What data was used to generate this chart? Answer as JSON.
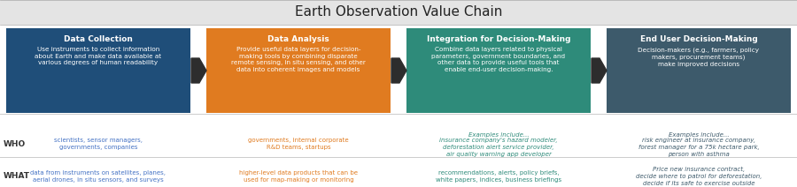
{
  "title": "Earth Observation Value Chain",
  "title_fontsize": 11,
  "background_color": "#ebebeb",
  "content_bg": "#ffffff",
  "boxes": [
    {
      "title": "Data Collection",
      "body": "Use instruments to collect information\nabout Earth and make data available at\nvarious degrees of human readability",
      "color": "#1f4e79",
      "text_color": "#ffffff"
    },
    {
      "title": "Data Analysis",
      "body": "Provide useful data layers for decision-\nmaking tools by combining disparate\nremote sensing, in situ sensing, and other\ndata into coherent images and models",
      "color": "#e07b20",
      "text_color": "#ffffff"
    },
    {
      "title": "Integration for Decision-Making",
      "body": "Combine data layers related to physical\nparameters, government boundaries, and\nother data to provide useful tools that\nenable end-user decision-making.",
      "color": "#2e8b7a",
      "text_color": "#ffffff"
    },
    {
      "title": "End User Decision-Making",
      "body": "Decision-makers (e.g., farmers, policy\nmakers, procurement teams)\nmake improved decisions",
      "color": "#3d5a6b",
      "text_color": "#ffffff"
    }
  ],
  "who_labels": [
    {
      "text": "scientists, sensor managers,\ngovernments, companies",
      "italic": false
    },
    {
      "text": "governments, internal corporate\nR&D teams, startups",
      "italic": false
    },
    {
      "text": "Examples include...",
      "extra": "insurance company's hazard modeler,\ndeforestation alert service provider,\nair quality warning app developer",
      "italic": true
    },
    {
      "text": "Examples include...",
      "extra": "risk engineer at insurance company,\nforest manager for a 75k hectare park,\nperson with asthma",
      "italic": true
    }
  ],
  "what_labels": [
    {
      "text": "data from instruments on satellites, planes,\naerial drones, in situ sensors, and surveys",
      "italic": false
    },
    {
      "text": "higher-level data products that can be\nused for map-making or monitoring",
      "italic": false
    },
    {
      "text": "recommendations, alerts, policy briefs,\nwhite papers, indices, business briefings",
      "italic": false
    },
    {
      "text": "Price new insurance contract,\ndecide where to patrol for deforestation,\ndecide if its safe to exercise outside",
      "italic": true
    }
  ],
  "who_colors": [
    "#4472c4",
    "#e07b20",
    "#2e8b7a",
    "#3d5a6b"
  ],
  "what_colors": [
    "#4472c4",
    "#e07b20",
    "#2e8b7a",
    "#3d5a6b"
  ],
  "row_label_color": "#333333",
  "arrow_color": "#2d2d2d",
  "separator_color": "#cccccc"
}
